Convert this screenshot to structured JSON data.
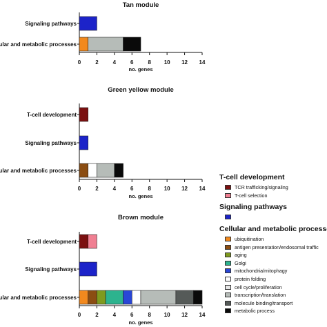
{
  "colors": {
    "tcr_trafficking": "#7b1010",
    "t_cell_selection": "#f07f92",
    "signaling": "#1c23c9",
    "ubiquitination": "#f2891e",
    "antigen_presentation": "#8b4d12",
    "aging": "#7f9a1f",
    "golgi": "#2db38e",
    "mitochondria": "#2946d6",
    "protein_folding": "#ffffff",
    "cell_cycle": "#e6e6e6",
    "transcription": "#b6bcb8",
    "molecule_binding": "#555a58",
    "metabolic_process": "#0a0a0a"
  },
  "legend": {
    "groups": [
      {
        "title": "T-cell development",
        "items": [
          {
            "label": "TCR trafficking/signaling",
            "color": "#7b1010"
          },
          {
            "label": "T-cell selection",
            "color": "#f07f92"
          }
        ]
      },
      {
        "title": "Signaling pathways",
        "items": [
          {
            "label": "",
            "color": "#1c23c9"
          }
        ]
      },
      {
        "title": "Cellular and metabolic processes",
        "items": [
          {
            "label": "ubiquitination",
            "color": "#f2891e"
          },
          {
            "label": "antigen presentation/endosomal traffic",
            "color": "#8b4d12"
          },
          {
            "label": "aging",
            "color": "#7f9a1f"
          },
          {
            "label": "Golgi",
            "color": "#2db38e"
          },
          {
            "label": "mitochondria/mitophagy",
            "color": "#2946d6"
          },
          {
            "label": "protein folding",
            "color": "#ffffff"
          },
          {
            "label": "cell cycle/proliferation",
            "color": "#e6e6e6"
          },
          {
            "label": "transcription/translation",
            "color": "#b6bcb8"
          },
          {
            "label": "molecule binding/transport",
            "color": "#555a58"
          },
          {
            "label": "metabolic process",
            "color": "#0a0a0a"
          }
        ]
      }
    ]
  },
  "chart_data": [
    {
      "type": "bar",
      "orientation": "horizontal",
      "stacked": true,
      "title": "Tan module",
      "xlabel": "no. genes",
      "xlim": [
        0,
        14
      ],
      "xticks": [
        "0",
        "2",
        "4",
        "6",
        "8",
        "10",
        "12",
        "14"
      ],
      "categories": [
        "Signaling pathways",
        "Cellular and metabolic processes"
      ],
      "category_labels_visible": [
        "Signaling pathways",
        "ular and metabolic processes"
      ],
      "rows": [
        {
          "category": "Signaling pathways",
          "segments": [
            {
              "color": "#1c23c9",
              "value": 2
            }
          ]
        },
        {
          "category": "Cellular and metabolic processes",
          "segments": [
            {
              "color": "#f2891e",
              "value": 1
            },
            {
              "color": "#b6bcb8",
              "value": 4
            },
            {
              "color": "#0a0a0a",
              "value": 2
            }
          ]
        }
      ]
    },
    {
      "type": "bar",
      "orientation": "horizontal",
      "stacked": true,
      "title": "Green yellow module",
      "xlabel": "no. genes",
      "xlim": [
        0,
        14
      ],
      "xticks": [
        "0",
        "2",
        "4",
        "6",
        "8",
        "10",
        "12",
        "14"
      ],
      "categories": [
        "T-cell development",
        "Signaling pathways",
        "Cellular and metabolic processes"
      ],
      "category_labels_visible": [
        "T-cell development",
        "Signaling pathways",
        "ular and metabolic processes"
      ],
      "rows": [
        {
          "category": "T-cell development",
          "segments": [
            {
              "color": "#7b1010",
              "value": 1
            }
          ]
        },
        {
          "category": "Signaling pathways",
          "segments": [
            {
              "color": "#1c23c9",
              "value": 1
            }
          ]
        },
        {
          "category": "Cellular and metabolic processes",
          "segments": [
            {
              "color": "#8b4d12",
              "value": 1
            },
            {
              "color": "#ffffff",
              "value": 1
            },
            {
              "color": "#b6bcb8",
              "value": 2
            },
            {
              "color": "#0a0a0a",
              "value": 1
            }
          ]
        }
      ]
    },
    {
      "type": "bar",
      "orientation": "horizontal",
      "stacked": true,
      "title": "Brown module",
      "xlabel": "no. genes",
      "xlim": [
        0,
        14
      ],
      "xticks": [
        "0",
        "2",
        "4",
        "6",
        "8",
        "10",
        "12",
        "14"
      ],
      "categories": [
        "T-cell development",
        "Signaling pathways",
        "Cellular and metabolic processes"
      ],
      "category_labels_visible": [
        "T-cell development",
        "Signaling pathways",
        "ular and metabolic processes"
      ],
      "rows": [
        {
          "category": "T-cell development",
          "segments": [
            {
              "color": "#7b1010",
              "value": 1
            },
            {
              "color": "#f07f92",
              "value": 1
            }
          ]
        },
        {
          "category": "Signaling pathways",
          "segments": [
            {
              "color": "#1c23c9",
              "value": 2
            }
          ]
        },
        {
          "category": "Cellular and metabolic processes",
          "segments": [
            {
              "color": "#f2891e",
              "value": 1
            },
            {
              "color": "#8b4d12",
              "value": 1
            },
            {
              "color": "#7f9a1f",
              "value": 1
            },
            {
              "color": "#2db38e",
              "value": 2
            },
            {
              "color": "#2946d6",
              "value": 1
            },
            {
              "color": "#ffffff",
              "value": 1
            },
            {
              "color": "#b6bcb8",
              "value": 4
            },
            {
              "color": "#555a58",
              "value": 2
            },
            {
              "color": "#0a0a0a",
              "value": 1
            }
          ]
        }
      ]
    }
  ]
}
